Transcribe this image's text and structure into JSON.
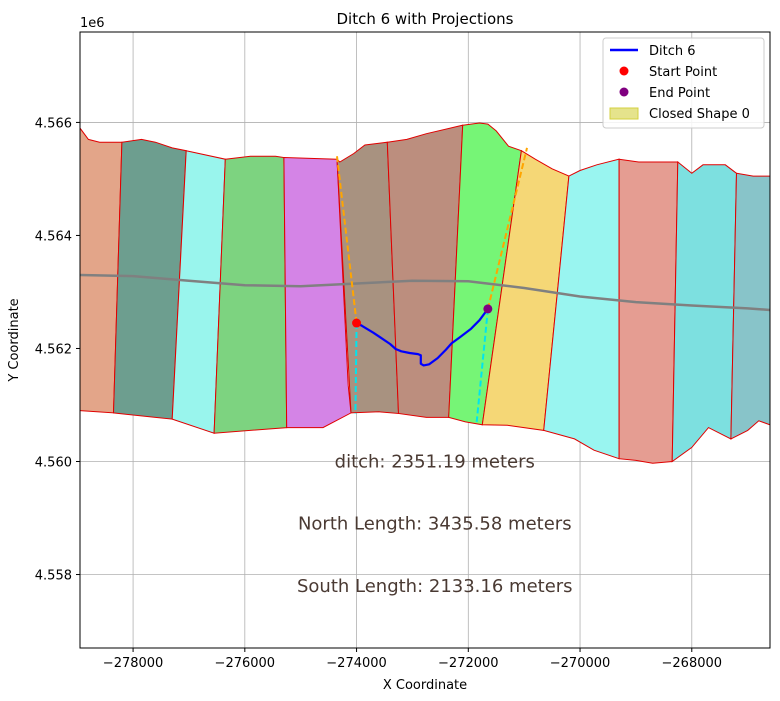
{
  "chart_data": {
    "type": "line",
    "title": "Ditch 6 with Projections",
    "xlabel": "X Coordinate",
    "ylabel": "Y Coordinate",
    "y_offset_label": "1e6",
    "xlim": [
      -278950,
      -266600
    ],
    "ylim": [
      4556700,
      4567600
    ],
    "grid": true,
    "x_ticks": [
      -278000,
      -276000,
      -274000,
      -272000,
      -270000,
      -268000
    ],
    "x_tick_labels": [
      "−278000",
      "−276000",
      "−274000",
      "−272000",
      "−270000",
      "−268000"
    ],
    "y_ticks": [
      4558000,
      4560000,
      4562000,
      4564000,
      4566000
    ],
    "y_tick_labels": [
      "4.558",
      "4.560",
      "4.562",
      "4.564",
      "4.566"
    ],
    "legend": {
      "placement": "top-right",
      "entries": [
        {
          "label": "Ditch 6",
          "kind": "line",
          "color": "#0000ff"
        },
        {
          "label": "Start Point",
          "kind": "dot",
          "color": "#ff0000"
        },
        {
          "label": "End Point",
          "kind": "dot",
          "color": "#800080"
        },
        {
          "label": "Closed Shape 0",
          "kind": "patch",
          "color": "#d4d03f"
        }
      ]
    },
    "shapes": [
      {
        "color": "#e3a589",
        "poly": [
          [
            -278950,
            4565900
          ],
          [
            -278800,
            4565700
          ],
          [
            -278600,
            4565650
          ],
          [
            -278200,
            4565650
          ],
          [
            -278350,
            4560860
          ],
          [
            -278950,
            4560900
          ]
        ]
      },
      {
        "color": "#6d9e8f",
        "poly": [
          [
            -278200,
            4565650
          ],
          [
            -277850,
            4565700
          ],
          [
            -277600,
            4565650
          ],
          [
            -277300,
            4565550
          ],
          [
            -277050,
            4565500
          ],
          [
            -277300,
            4560750
          ],
          [
            -277600,
            4560780
          ],
          [
            -278350,
            4560860
          ]
        ]
      },
      {
        "color": "#99f5ed",
        "poly": [
          [
            -277050,
            4565500
          ],
          [
            -276350,
            4565350
          ],
          [
            -276550,
            4560500
          ],
          [
            -277300,
            4560750
          ]
        ]
      },
      {
        "color": "#7dd380",
        "poly": [
          [
            -276350,
            4565350
          ],
          [
            -275900,
            4565400
          ],
          [
            -275450,
            4565400
          ],
          [
            -275300,
            4565380
          ],
          [
            -275250,
            4560600
          ],
          [
            -276550,
            4560500
          ]
        ]
      },
      {
        "color": "#d484e6",
        "poly": [
          [
            -275300,
            4565380
          ],
          [
            -274350,
            4565350
          ],
          [
            -274150,
            4561350
          ],
          [
            -274100,
            4560860
          ],
          [
            -274600,
            4560600
          ],
          [
            -275250,
            4560600
          ]
        ]
      },
      {
        "color": "#a89280",
        "poly": [
          [
            -274350,
            4565350
          ],
          [
            -274300,
            4565300
          ],
          [
            -274050,
            4565450
          ],
          [
            -273850,
            4565600
          ],
          [
            -273450,
            4565650
          ],
          [
            -273250,
            4560850
          ],
          [
            -273600,
            4560880
          ],
          [
            -274100,
            4560860
          ]
        ]
      },
      {
        "color": "#bc8e7e",
        "poly": [
          [
            -273450,
            4565650
          ],
          [
            -273100,
            4565700
          ],
          [
            -272750,
            4565800
          ],
          [
            -272100,
            4565950
          ],
          [
            -272350,
            4560780
          ],
          [
            -272750,
            4560780
          ],
          [
            -273250,
            4560850
          ]
        ]
      },
      {
        "color": "#76f576",
        "poly": [
          [
            -272100,
            4565950
          ],
          [
            -271800,
            4565990
          ],
          [
            -271650,
            4565970
          ],
          [
            -271500,
            4565850
          ],
          [
            -271280,
            4565580
          ],
          [
            -271050,
            4565500
          ],
          [
            -271750,
            4560650
          ],
          [
            -272050,
            4560700
          ],
          [
            -272350,
            4560780
          ]
        ]
      },
      {
        "color": "#f5d776",
        "poly": [
          [
            -271050,
            4565500
          ],
          [
            -270800,
            4565350
          ],
          [
            -270500,
            4565180
          ],
          [
            -270200,
            4565050
          ],
          [
            -270650,
            4560550
          ],
          [
            -271300,
            4560640
          ],
          [
            -271750,
            4560650
          ]
        ]
      },
      {
        "color": "#99f5f0",
        "poly": [
          [
            -270200,
            4565050
          ],
          [
            -270000,
            4565150
          ],
          [
            -269700,
            4565250
          ],
          [
            -269300,
            4565350
          ],
          [
            -269300,
            4560050
          ],
          [
            -269750,
            4560200
          ],
          [
            -270100,
            4560400
          ],
          [
            -270650,
            4560550
          ]
        ]
      },
      {
        "color": "#e59d92",
        "poly": [
          [
            -269300,
            4565350
          ],
          [
            -268950,
            4565300
          ],
          [
            -268650,
            4565300
          ],
          [
            -268250,
            4565300
          ],
          [
            -268350,
            4560000
          ],
          [
            -268700,
            4559970
          ],
          [
            -269000,
            4560020
          ],
          [
            -269300,
            4560050
          ]
        ]
      },
      {
        "color": "#7de0e0",
        "poly": [
          [
            -268250,
            4565300
          ],
          [
            -268000,
            4565100
          ],
          [
            -267800,
            4565250
          ],
          [
            -267400,
            4565250
          ],
          [
            -267200,
            4565100
          ],
          [
            -267300,
            4560400
          ],
          [
            -267700,
            4560600
          ],
          [
            -268000,
            4560250
          ],
          [
            -268350,
            4560000
          ]
        ]
      },
      {
        "color": "#88c4c9",
        "poly": [
          [
            -267200,
            4565100
          ],
          [
            -266900,
            4565050
          ],
          [
            -266600,
            4565050
          ],
          [
            -266600,
            4560650
          ],
          [
            -266800,
            4560720
          ],
          [
            -267000,
            4560550
          ],
          [
            -267300,
            4560400
          ]
        ]
      }
    ],
    "center_line": {
      "color": "#808080",
      "x": [
        -278950,
        -278000,
        -277000,
        -276000,
        -275000,
        -274000,
        -273000,
        -272000,
        -271000,
        -270000,
        -269000,
        -268000,
        -267000,
        -266600
      ],
      "y": [
        4563300,
        4563280,
        4563200,
        4563120,
        4563100,
        4563150,
        4563200,
        4563190,
        4563070,
        4562920,
        4562820,
        4562760,
        4562710,
        4562680
      ]
    },
    "ditch": {
      "name": "Ditch 6",
      "color": "#0000ff",
      "x": [
        -274000,
        -273900,
        -273700,
        -273550,
        -273400,
        -273300,
        -273200,
        -273050,
        -272900,
        -272850,
        -272850,
        -272800,
        -272700,
        -272550,
        -272400,
        -272300,
        -272150,
        -271950,
        -271800,
        -271650
      ],
      "y": [
        4562450,
        4562400,
        4562280,
        4562180,
        4562080,
        4561990,
        4561950,
        4561920,
        4561900,
        4561880,
        4561730,
        4561700,
        4561720,
        4561830,
        4561980,
        4562090,
        4562200,
        4562350,
        4562500,
        4562700
      ]
    },
    "start_point": {
      "name": "Start Point",
      "x": -274000,
      "y": 4562450,
      "color": "#ff0000"
    },
    "end_point": {
      "name": "End Point",
      "x": -271650,
      "y": 4562700,
      "color": "#800080"
    },
    "projections": [
      {
        "color": "#ffa500",
        "x": [
          -274000,
          -274350
        ],
        "y": [
          4562450,
          4565400
        ]
      },
      {
        "color": "#00e5ee",
        "x": [
          -274000,
          -274020
        ],
        "y": [
          4562450,
          4560850
        ]
      },
      {
        "color": "#ffa500",
        "x": [
          -271650,
          -270950
        ],
        "y": [
          4562700,
          4565550
        ]
      },
      {
        "color": "#00e5ee",
        "x": [
          -271650,
          -271850
        ],
        "y": [
          4562700,
          4560700
        ]
      }
    ],
    "annotations": [
      {
        "text": "ditch: 2351.19 meters",
        "x": -272600,
        "y": 4560000
      },
      {
        "text": "North Length: 3435.58 meters",
        "x": -272600,
        "y": 4558900
      },
      {
        "text": "South Length: 2133.16 meters",
        "x": -272600,
        "y": 4557800
      }
    ],
    "annotation_color": "#4a3a33"
  }
}
